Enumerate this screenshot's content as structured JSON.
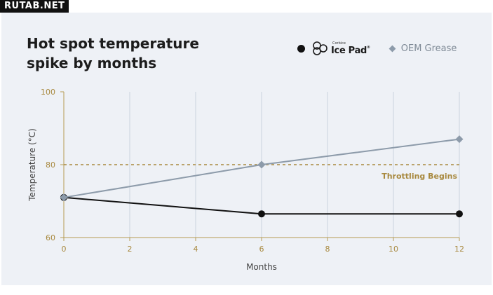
{
  "watermark": "RUTAB.NET",
  "legend": {
    "icepad_brand_small": "Corbice",
    "icepad_brand_main": "Ice Pad",
    "icepad_tm": "®",
    "oem_label": "OEM Grease"
  },
  "chart_data": {
    "type": "line",
    "title": "Hot spot temperature spike by months",
    "xlabel": "Months",
    "ylabel": "Temperature (°C)",
    "xlim": [
      0,
      12
    ],
    "ylim": [
      60,
      100
    ],
    "xticks": [
      0,
      2,
      4,
      6,
      8,
      10,
      12
    ],
    "yticks": [
      60,
      80,
      100
    ],
    "grid": "vertical",
    "legend_position": "top-right",
    "series": [
      {
        "name": "Ice Pad",
        "marker": "circle",
        "color": "#111111",
        "x": [
          0,
          6,
          12
        ],
        "y": [
          71,
          66.5,
          66.5
        ]
      },
      {
        "name": "OEM Grease",
        "marker": "diamond",
        "color": "#8d9baa",
        "x": [
          0,
          6,
          12
        ],
        "y": [
          71,
          80,
          87
        ]
      }
    ],
    "threshold": {
      "y": 80,
      "label": "Throttling Begins",
      "color": "#a8893f"
    }
  }
}
